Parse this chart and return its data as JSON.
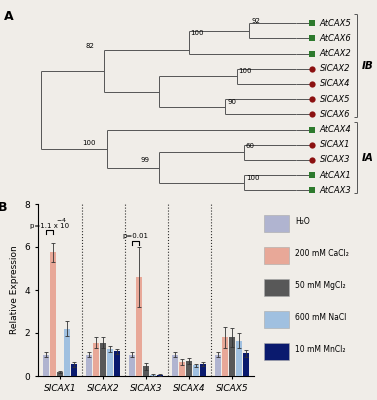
{
  "panel_a_label": "A",
  "panel_b_label": "B",
  "bg_color": "#f0ede8",
  "tree": {
    "leaves": [
      "AtCAX5",
      "AtCAX6",
      "AtCAX2",
      "SlCAX2",
      "SlCAX4",
      "SlCAX5",
      "SlCAX6",
      "AtCAX4",
      "SlCAX1",
      "SlCAX3",
      "AtCAX1",
      "AtCAX3"
    ],
    "leaf_colors": [
      "#2d7a2d",
      "#2d7a2d",
      "#2d7a2d",
      "#8b1010",
      "#8b1010",
      "#8b1010",
      "#8b1010",
      "#2d7a2d",
      "#8b1010",
      "#8b1010",
      "#2d7a2d",
      "#2d7a2d"
    ],
    "leaf_markers": [
      "s",
      "s",
      "s",
      "o",
      "o",
      "o",
      "o",
      "s",
      "o",
      "o",
      "s",
      "s"
    ]
  },
  "bar": {
    "genes": [
      "SICAX1",
      "SICAX2",
      "SICAX3",
      "SICAX4",
      "SICAX5"
    ],
    "conditions": [
      "H₂O",
      "200 mM CaCl₂",
      "50 mM MgCl₂",
      "600 mM NaCl",
      "10 mM MnCl₂"
    ],
    "colors": [
      "#b0b4d0",
      "#e8a898",
      "#585858",
      "#a0c0e0",
      "#0a1a6e"
    ],
    "values": [
      [
        1.0,
        5.75,
        0.2,
        2.2,
        0.55
      ],
      [
        1.0,
        1.55,
        1.55,
        1.25,
        1.15
      ],
      [
        1.0,
        4.6,
        0.45,
        0.05,
        0.05
      ],
      [
        1.0,
        0.65,
        0.7,
        0.5,
        0.55
      ],
      [
        1.0,
        1.8,
        1.8,
        1.65,
        1.05
      ]
    ],
    "errors": [
      [
        0.12,
        0.45,
        0.05,
        0.35,
        0.12
      ],
      [
        0.1,
        0.25,
        0.25,
        0.15,
        0.12
      ],
      [
        0.12,
        1.4,
        0.15,
        0.04,
        0.03
      ],
      [
        0.1,
        0.12,
        0.12,
        0.08,
        0.08
      ],
      [
        0.12,
        0.48,
        0.45,
        0.35,
        0.15
      ]
    ],
    "ylabel": "Relative Expression",
    "ylim": [
      0,
      8
    ],
    "yticks": [
      0,
      2,
      4,
      6,
      8
    ]
  }
}
